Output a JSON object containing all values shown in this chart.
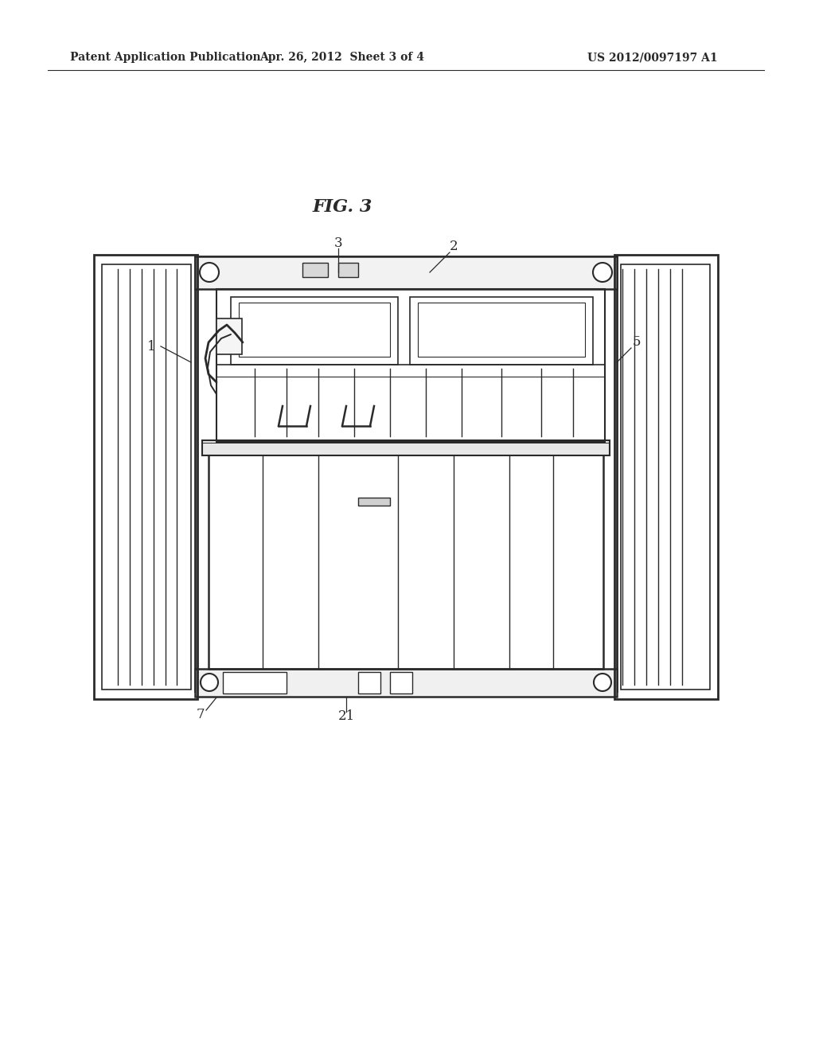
{
  "bg_color": "#ffffff",
  "line_color": "#2a2a2a",
  "title": "FIG. 3",
  "header_left": "Patent Application Publication",
  "header_mid": "Apr. 26, 2012  Sheet 3 of 4",
  "header_right": "US 2012/0097197 A1",
  "fig_width": 10.24,
  "fig_height": 13.2,
  "dpi": 100
}
